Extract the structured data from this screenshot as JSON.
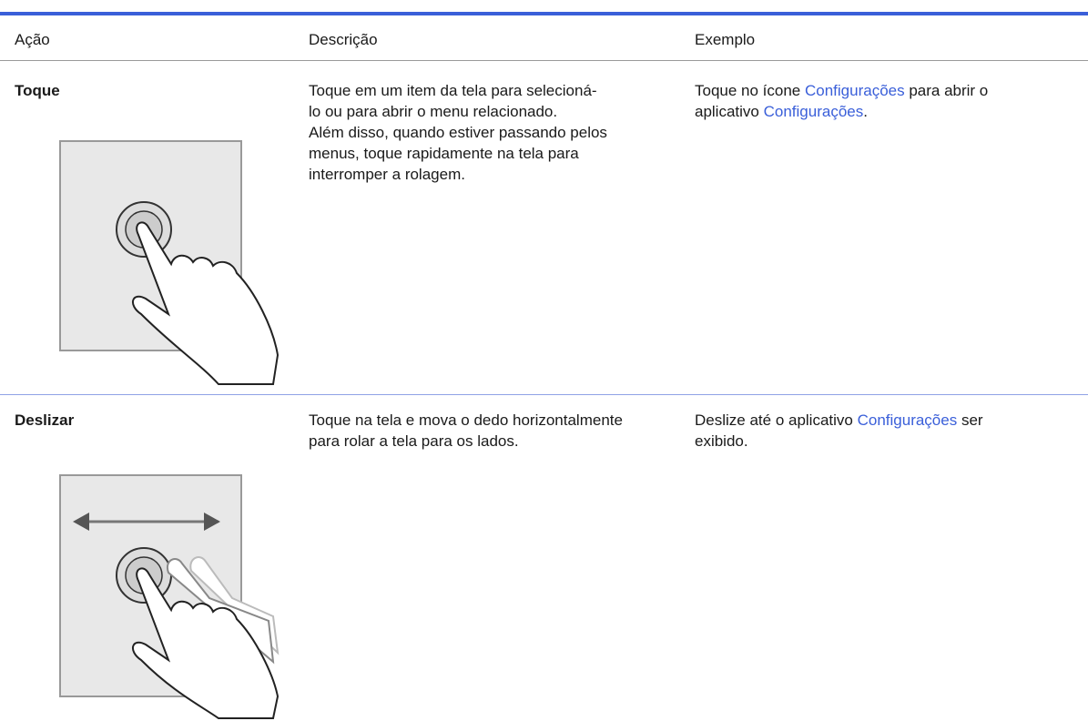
{
  "table": {
    "headers": [
      "Ação",
      "Descrição",
      "Exemplo"
    ],
    "rows": [
      {
        "action": "Toque",
        "description": [
          "Toque em um item da tela para selecioná-",
          "lo ou para abrir o menu relacionado.",
          "Além disso, quando estiver passando pelos",
          "menus, toque rapidamente na tela para",
          "interromper a rolagem."
        ],
        "example": [
          [
            "Toque no ícone ",
            "Configurações",
            " para abrir o"
          ],
          [
            "aplicativo ",
            "Configurações",
            "."
          ]
        ]
      },
      {
        "action": "Deslizar",
        "description": [
          "Toque na tela e mova o dedo horizontalmente",
          "para rolar a tela para os lados."
        ],
        "example": [
          [
            "Deslize até o aplicativo ",
            "Configurações",
            " ser"
          ],
          [
            "exibido."
          ]
        ]
      }
    ]
  }
}
